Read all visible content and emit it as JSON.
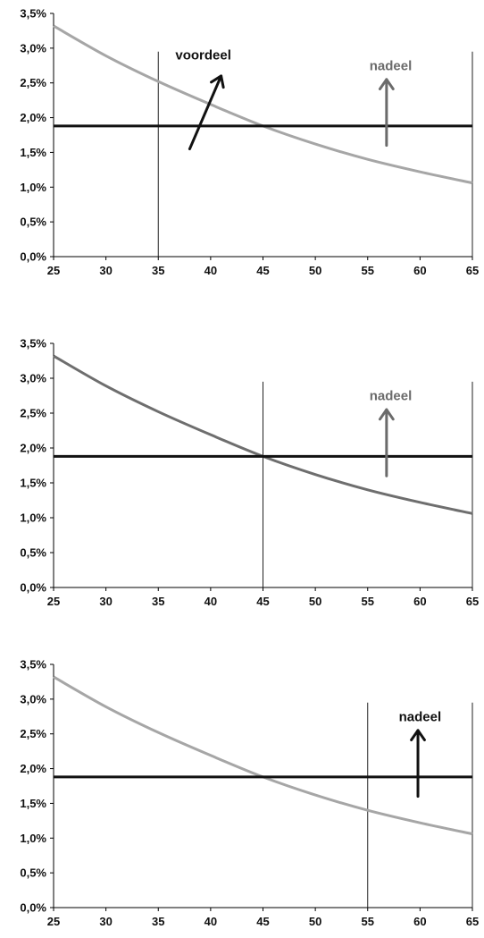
{
  "chart_data": [
    {
      "type": "line",
      "xlim": [
        25,
        65
      ],
      "ylim": [
        0,
        3.5
      ],
      "x_ticks": [
        "25",
        "30",
        "35",
        "40",
        "45",
        "50",
        "55",
        "60",
        "65"
      ],
      "y_ticks": [
        "0,0%",
        "0,5%",
        "1,0%",
        "1,5%",
        "2,0%",
        "2,5%",
        "3,0%",
        "3,5%"
      ],
      "series": [
        {
          "x": [
            25,
            30,
            35,
            40,
            45,
            50,
            55,
            60,
            65
          ],
          "y": [
            3.32,
            2.89,
            2.52,
            2.19,
            1.88,
            1.62,
            1.4,
            1.22,
            1.06
          ],
          "color": "#a6a6a6"
        },
        {
          "x": [
            25,
            65
          ],
          "y": [
            1.88,
            1.88
          ],
          "color": "#111111"
        }
      ],
      "vlines": [
        35,
        65
      ],
      "annotations": [
        {
          "text": "voordeel",
          "color": "#111111",
          "x": 39.3,
          "y": 2.9,
          "arrow": [
            [
              38.0,
              1.55
            ],
            [
              41.0,
              2.6
            ]
          ]
        },
        {
          "text": "nadeel",
          "color": "#6b6b6b",
          "x": 57.2,
          "y": 2.75,
          "arrow": [
            [
              56.8,
              1.6
            ],
            [
              56.8,
              2.55
            ]
          ]
        }
      ]
    },
    {
      "type": "line",
      "xlim": [
        25,
        65
      ],
      "ylim": [
        0,
        3.5
      ],
      "x_ticks": [
        "25",
        "30",
        "35",
        "40",
        "45",
        "50",
        "55",
        "60",
        "65"
      ],
      "y_ticks": [
        "0,0%",
        "0,5%",
        "1,0%",
        "1,5%",
        "2,0%",
        "2,5%",
        "3,0%",
        "3,5%"
      ],
      "series": [
        {
          "x": [
            25,
            30,
            35,
            40,
            45,
            50,
            55,
            60,
            65
          ],
          "y": [
            3.32,
            2.89,
            2.52,
            2.19,
            1.88,
            1.62,
            1.4,
            1.22,
            1.06
          ],
          "color": "#6e6e6e"
        },
        {
          "x": [
            25,
            65
          ],
          "y": [
            1.88,
            1.88
          ],
          "color": "#111111"
        }
      ],
      "vlines": [
        45,
        65
      ],
      "annotations": [
        {
          "text": "nadeel",
          "color": "#6b6b6b",
          "x": 57.2,
          "y": 2.75,
          "arrow": [
            [
              56.8,
              1.6
            ],
            [
              56.8,
              2.55
            ]
          ]
        }
      ]
    },
    {
      "type": "line",
      "xlim": [
        25,
        65
      ],
      "ylim": [
        0,
        3.5
      ],
      "x_ticks": [
        "25",
        "30",
        "35",
        "40",
        "45",
        "50",
        "55",
        "60",
        "65"
      ],
      "y_ticks": [
        "0,0%",
        "0,5%",
        "1,0%",
        "1,5%",
        "2,0%",
        "2,5%",
        "3,0%",
        "3,5%"
      ],
      "series": [
        {
          "x": [
            25,
            30,
            35,
            40,
            45,
            50,
            55,
            60,
            65
          ],
          "y": [
            3.32,
            2.89,
            2.52,
            2.19,
            1.88,
            1.62,
            1.4,
            1.22,
            1.06
          ],
          "color": "#a6a6a6"
        },
        {
          "x": [
            25,
            65
          ],
          "y": [
            1.88,
            1.88
          ],
          "color": "#111111"
        }
      ],
      "vlines": [
        55,
        65
      ],
      "annotations": [
        {
          "text": "nadeel",
          "color": "#111111",
          "x": 60.0,
          "y": 2.75,
          "arrow": [
            [
              59.8,
              1.6
            ],
            [
              59.8,
              2.55
            ]
          ]
        }
      ]
    }
  ]
}
